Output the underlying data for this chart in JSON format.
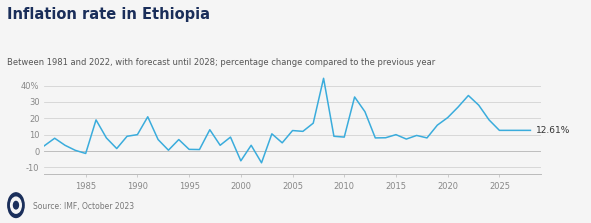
{
  "title": "Inflation rate in Ethiopia",
  "subtitle": "Between 1981 and 2022, with forecast until 2028; percentage change compared to the previous year",
  "source": "Source: IMF, October 2023",
  "line_color": "#3aacdc",
  "background_color": "#f5f5f5",
  "plot_bg_color": "#f5f5f5",
  "title_color": "#1a2e5a",
  "subtitle_color": "#555555",
  "tick_color": "#888888",
  "label_value": "12.61%",
  "years": [
    1981,
    1982,
    1983,
    1984,
    1985,
    1986,
    1987,
    1988,
    1989,
    1990,
    1991,
    1992,
    1993,
    1994,
    1995,
    1996,
    1997,
    1998,
    1999,
    2000,
    2001,
    2002,
    2003,
    2004,
    2005,
    2006,
    2007,
    2008,
    2009,
    2010,
    2011,
    2012,
    2013,
    2014,
    2015,
    2016,
    2017,
    2018,
    2019,
    2020,
    2021,
    2022,
    2023,
    2024,
    2025,
    2026,
    2027,
    2028
  ],
  "values": [
    3.2,
    7.8,
    3.5,
    0.4,
    -1.5,
    19.0,
    8.0,
    1.5,
    9.0,
    10.0,
    20.9,
    7.0,
    0.5,
    7.0,
    1.0,
    0.9,
    13.0,
    3.5,
    8.5,
    -6.0,
    3.5,
    -7.2,
    10.5,
    5.0,
    12.5,
    12.0,
    17.0,
    44.4,
    9.0,
    8.5,
    33.0,
    24.0,
    8.0,
    8.1,
    10.0,
    7.3,
    9.5,
    8.0,
    15.8,
    20.4,
    26.8,
    33.9,
    28.0,
    19.0,
    12.61,
    12.61,
    12.61,
    12.61
  ],
  "xlim": [
    1981,
    2029
  ],
  "ylim": [
    -14,
    50
  ],
  "ytick_vals": [
    -10,
    0,
    10,
    20,
    30,
    40
  ],
  "ytick_labels": [
    "-10",
    "0",
    "10",
    "20",
    "30",
    "40%"
  ],
  "xticks": [
    1985,
    1990,
    1995,
    2000,
    2005,
    2010,
    2015,
    2020,
    2025
  ]
}
